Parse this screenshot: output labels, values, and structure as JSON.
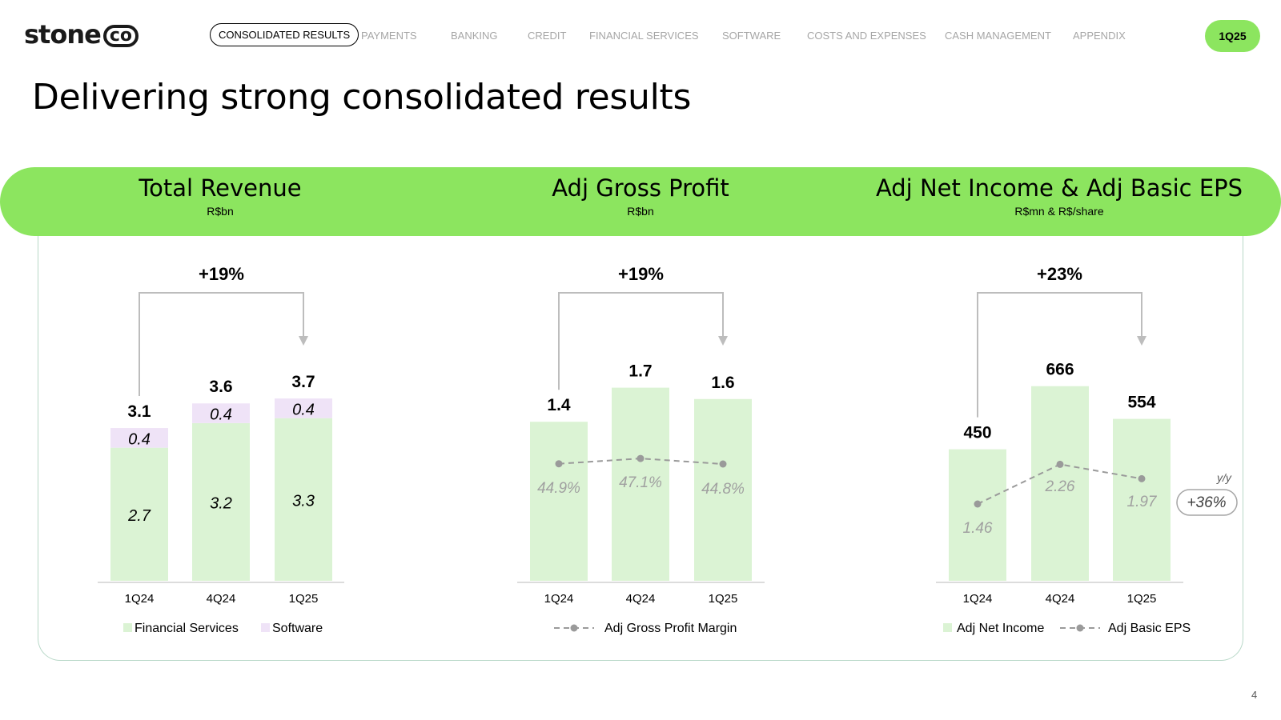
{
  "logo": {
    "main": "stone",
    "co": "co"
  },
  "nav": {
    "items": [
      {
        "label": "CONSOLIDATED RESULTS",
        "active": true
      },
      {
        "label": "PAYMENTS",
        "active": false
      },
      {
        "label": "BANKING",
        "active": false
      },
      {
        "label": "CREDIT",
        "active": false
      },
      {
        "label": "FINANCIAL SERVICES",
        "active": false
      },
      {
        "label": "SOFTWARE",
        "active": false
      },
      {
        "label": "COSTS AND EXPENSES",
        "active": false
      },
      {
        "label": "CASH MANAGEMENT",
        "active": false
      },
      {
        "label": "APPENDIX",
        "active": false
      }
    ],
    "badge": "1Q25"
  },
  "page_title": "Delivering strong consolidated results",
  "page_number": "4",
  "colors": {
    "accent_green": "#8ce55f",
    "bar_green": "#dbf3d4",
    "bar_lilac": "#efe3f7",
    "line_gray": "#9a9a9a",
    "panel_border": "#b8d8c8"
  },
  "sections": [
    {
      "title": "Total Revenue",
      "unit": "R$bn"
    },
    {
      "title": "Adj Gross Profit",
      "unit": "R$bn"
    },
    {
      "title": "Adj Net Income & Adj Basic EPS",
      "unit": "R$mn & R$/share"
    }
  ],
  "chart_data": [
    {
      "type": "bar",
      "stacked": true,
      "title": "Total Revenue",
      "unit": "R$bn",
      "categories": [
        "1Q24",
        "4Q24",
        "1Q25"
      ],
      "series": [
        {
          "name": "Financial Services",
          "values": [
            2.7,
            3.2,
            3.3
          ],
          "labels": [
            "2.7",
            "3.2",
            "3.3"
          ],
          "color": "#dbf3d4"
        },
        {
          "name": "Software",
          "values": [
            0.4,
            0.4,
            0.4
          ],
          "labels": [
            "0.4",
            "0.4",
            "0.4"
          ],
          "color": "#efe3f7"
        }
      ],
      "totals": [
        "3.1",
        "3.6",
        "3.7"
      ],
      "growth": {
        "label": "+19%",
        "from": "1Q24",
        "to": "1Q25"
      },
      "legend_position": "bottom"
    },
    {
      "type": "bar",
      "title": "Adj Gross Profit",
      "unit": "R$bn",
      "categories": [
        "1Q24",
        "4Q24",
        "1Q25"
      ],
      "series": [
        {
          "name": "Adj Gross Profit",
          "values": [
            1.4,
            1.7,
            1.6
          ],
          "labels": [
            "1.4",
            "1.7",
            "1.6"
          ],
          "color": "#dbf3d4"
        }
      ],
      "line_series": [
        {
          "name": "Adj Gross Profit Margin",
          "values": [
            44.9,
            47.1,
            44.8
          ],
          "labels": [
            "44.9%",
            "47.1%",
            "44.8%"
          ],
          "style": "dashed"
        }
      ],
      "growth": {
        "label": "+19%",
        "from": "1Q24",
        "to": "1Q25"
      },
      "legend_position": "bottom"
    },
    {
      "type": "bar",
      "title": "Adj Net Income & Adj Basic EPS",
      "unit": "R$mn & R$/share",
      "categories": [
        "1Q24",
        "4Q24",
        "1Q25"
      ],
      "series": [
        {
          "name": "Adj Net Income",
          "values": [
            450,
            666,
            554
          ],
          "labels": [
            "450",
            "666",
            "554"
          ],
          "color": "#dbf3d4"
        }
      ],
      "line_series": [
        {
          "name": "Adj Basic EPS",
          "values": [
            1.46,
            2.26,
            1.97
          ],
          "labels": [
            "1.46",
            "2.26",
            "1.97"
          ],
          "style": "dashed"
        }
      ],
      "growth": {
        "label": "+23%",
        "from": "1Q24",
        "to": "1Q25"
      },
      "yy": {
        "label": "y/y",
        "value": "+36%"
      },
      "legend_position": "bottom"
    }
  ]
}
